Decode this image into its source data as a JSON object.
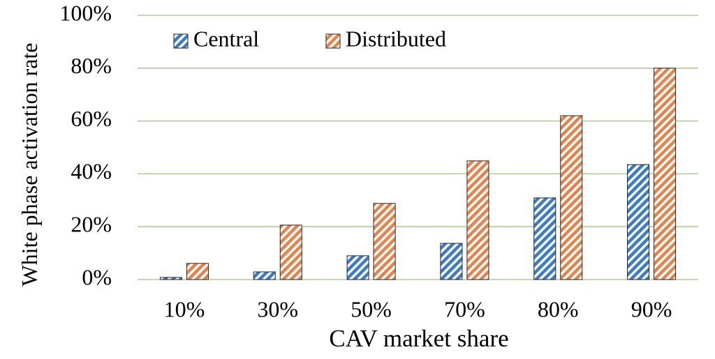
{
  "chart_data": {
    "type": "bar",
    "x_label": "CAV market share",
    "y_label": "White phase activation rate",
    "categories": [
      "10%",
      "30%",
      "50%",
      "70%",
      "80%",
      "90%"
    ],
    "series": [
      {
        "name": "Central",
        "color": "#3a7cc7",
        "values": [
          0.8,
          2.9,
          9,
          13.7,
          30.9,
          43.5
        ]
      },
      {
        "name": "Distributed",
        "color": "#e6834a",
        "values": [
          6.1,
          20.6,
          28.8,
          44.9,
          62,
          80
        ]
      }
    ],
    "ylim": [
      0,
      100
    ],
    "yticks": [
      {
        "value": 0,
        "label": "0%"
      },
      {
        "value": 20,
        "label": "20%"
      },
      {
        "value": 40,
        "label": "40%"
      },
      {
        "value": 60,
        "label": "60%"
      },
      {
        "value": 80,
        "label": "80%"
      },
      {
        "value": 100,
        "label": "100%"
      }
    ],
    "grid": true,
    "hatched": true,
    "legend": "top"
  }
}
